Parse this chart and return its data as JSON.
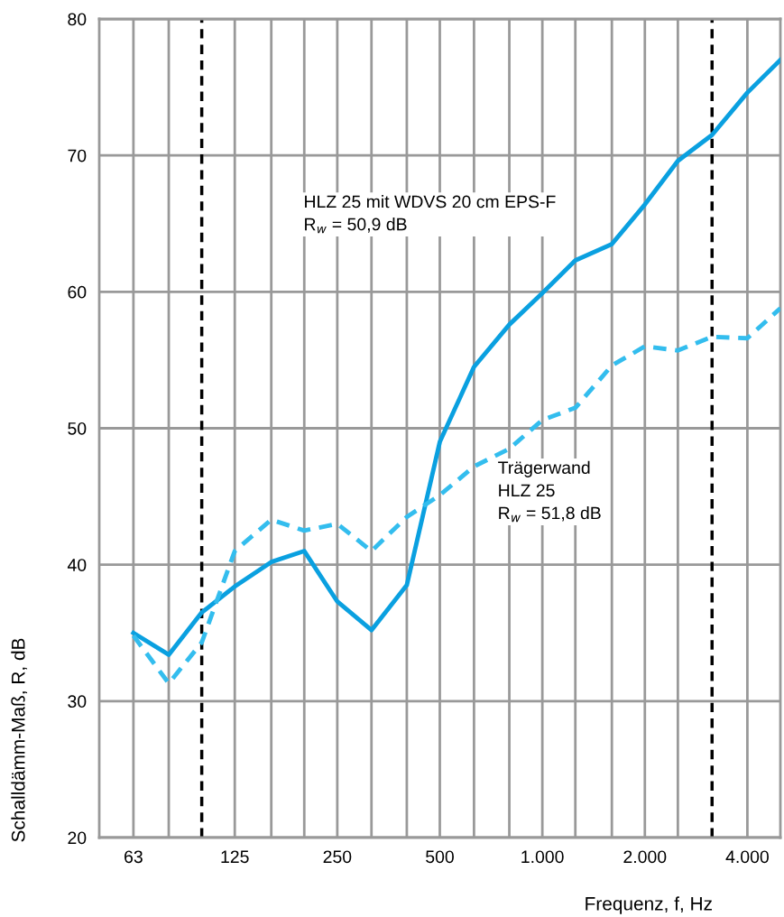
{
  "chart_data": {
    "type": "line",
    "xlabel": "Frequenz, f, Hz",
    "ylabel": "Schalldämm-Maß, R, dB",
    "x": [
      63,
      80,
      100,
      125,
      160,
      200,
      250,
      315,
      400,
      500,
      630,
      800,
      1000,
      1250,
      1600,
      2000,
      2500,
      3150,
      4000,
      5000
    ],
    "series": [
      {
        "color": "#0aa0e0",
        "line_style": "solid",
        "values": [
          35,
          33.4,
          36.5,
          38.4,
          40.2,
          41,
          37.3,
          35.2,
          38.5,
          49,
          54.5,
          57.6,
          59.9,
          62.3,
          63.5,
          66.4,
          69.6,
          71.5,
          74.6,
          77
        ]
      },
      {
        "color": "#33bdee",
        "line_style": "dashed",
        "values": [
          34.8,
          31.3,
          34.3,
          41,
          43.3,
          42.5,
          43,
          41,
          43.5,
          45.1,
          47.2,
          48.5,
          50.6,
          51.5,
          54.6,
          56,
          55.7,
          56.7,
          56.6,
          58.8
        ]
      }
    ],
    "log": "x",
    "xlim": [
      50,
      5000
    ],
    "xticks": [
      63,
      {
        "value": 80,
        "label": null
      },
      125,
      {
        "value": 160,
        "label": null
      },
      {
        "value": 200,
        "label": null
      },
      250,
      {
        "value": 315,
        "label": null
      },
      {
        "value": 400,
        "label": null
      },
      500,
      {
        "value": 630,
        "label": null
      },
      {
        "value": 800,
        "label": null
      },
      {
        "value": 1000,
        "label": "1.000"
      },
      {
        "value": 1250,
        "label": null
      },
      {
        "value": 1600,
        "label": null
      },
      {
        "value": 2000,
        "label": "2.000"
      },
      {
        "value": 2500,
        "label": null
      },
      {
        "value": 4000,
        "label": "4.000"
      }
    ],
    "ylim": [
      20,
      80
    ],
    "yticks": [
      20,
      30,
      40,
      50,
      60,
      70,
      80
    ],
    "grid": true,
    "ref_lines": [
      {
        "axis": "x",
        "value": 100,
        "color": "#000000",
        "line_style": "dashed"
      },
      {
        "axis": "x",
        "value": 3150,
        "color": "#000000",
        "line_style": "dashed"
      }
    ],
    "annotations": [
      "HLZ 25 mit WDVS 20 cm EPS-F\nR$_{w}$ = 50,9 dB",
      "Trägerwand\nHLZ 25\nR$_{w}$ = 51,8 dB"
    ]
  }
}
